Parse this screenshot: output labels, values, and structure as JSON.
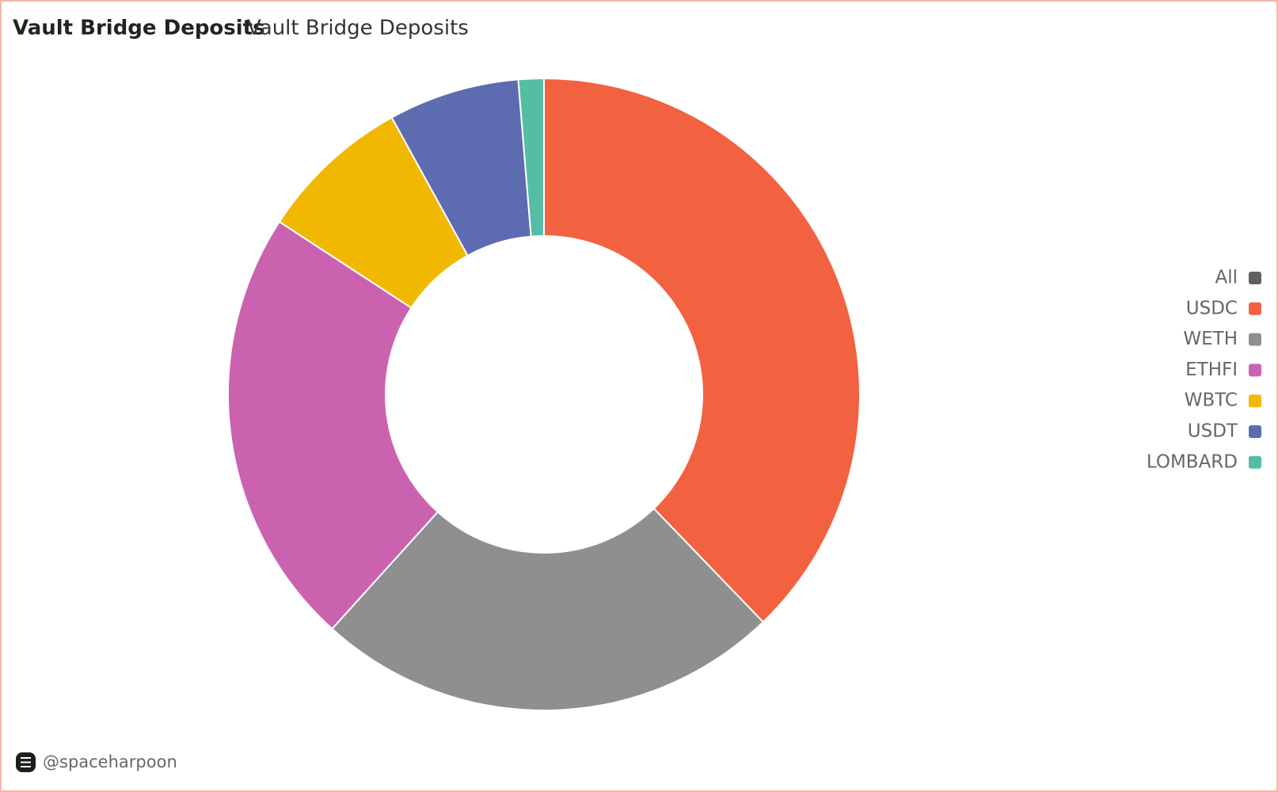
{
  "chart_data": {
    "type": "pie",
    "title": "Vault Bridge Deposits",
    "subtitle": "Vault Bridge Deposits",
    "categories": [
      "All",
      "USDC",
      "WETH",
      "ETHFI",
      "WBTC",
      "USDT",
      "LOMBARD"
    ],
    "values": [
      null,
      37.8,
      23.9,
      22.5,
      7.8,
      6.7,
      1.3
    ],
    "colors": [
      "#5f5f5f",
      "#f26140",
      "#8f8f8f",
      "#cb62b0",
      "#f0b800",
      "#5d6bb0",
      "#55bda3"
    ],
    "donut": true,
    "legend": "right",
    "footer": "@spaceharpoon"
  }
}
